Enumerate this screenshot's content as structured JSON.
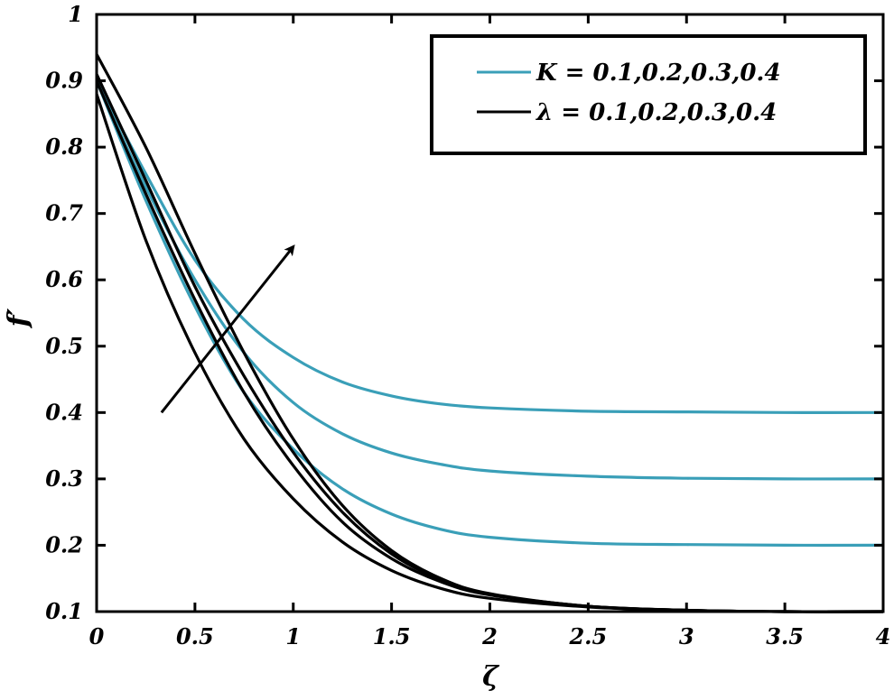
{
  "chart_data": {
    "type": "line",
    "xlabel": "ζ",
    "ylabel": "f′",
    "xlim": [
      0,
      4
    ],
    "ylim": [
      0.1,
      1
    ],
    "xticks": [
      "0",
      "0.5",
      "1",
      "1.5",
      "2",
      "2.5",
      "3",
      "3.5",
      "4"
    ],
    "yticks": [
      "0.1",
      "0.2",
      "0.3",
      "0.4",
      "0.5",
      "0.6",
      "0.7",
      "0.8",
      "0.9",
      "1"
    ],
    "grid": false,
    "legend_position": "top-right",
    "legend": [
      {
        "label": "K = 0.1,0.2,0.3,0.4",
        "color": "#3a9fb8"
      },
      {
        "label": "λ = 0.1,0.2,0.3,0.4",
        "color": "#000000"
      }
    ],
    "series": [
      {
        "group": "K = 0.1,0.2,0.3,0.4",
        "color": "#3a9fb8",
        "x": [
          0,
          0.25,
          0.5,
          0.75,
          1.0,
          1.25,
          1.5,
          1.75,
          2.0,
          2.5,
          3.0,
          3.5,
          4.0
        ],
        "y": [
          0.9,
          0.72,
          0.56,
          0.43,
          0.345,
          0.285,
          0.247,
          0.224,
          0.212,
          0.203,
          0.201,
          0.2,
          0.2
        ]
      },
      {
        "group": "K = 0.1,0.2,0.3,0.4",
        "color": "#3a9fb8",
        "x": [
          0,
          0.25,
          0.5,
          0.75,
          1.0,
          1.25,
          1.5,
          1.75,
          2.0,
          2.5,
          3.0,
          3.5,
          4.0
        ],
        "y": [
          0.9,
          0.74,
          0.6,
          0.49,
          0.415,
          0.368,
          0.339,
          0.322,
          0.312,
          0.304,
          0.301,
          0.3,
          0.3
        ]
      },
      {
        "group": "K = 0.1,0.2,0.3,0.4",
        "color": "#3a9fb8",
        "x": [
          0,
          0.25,
          0.5,
          0.75,
          1.0,
          1.25,
          1.5,
          1.75,
          2.0,
          2.5,
          3.0,
          3.5,
          4.0
        ],
        "y": [
          0.9,
          0.76,
          0.63,
          0.54,
          0.483,
          0.446,
          0.425,
          0.413,
          0.407,
          0.402,
          0.401,
          0.4,
          0.4
        ]
      },
      {
        "group": "λ = 0.1,0.2,0.3,0.4",
        "color": "#000000",
        "x": [
          0,
          0.25,
          0.5,
          0.75,
          1.0,
          1.25,
          1.5,
          1.75,
          2.0,
          2.5,
          3.0,
          3.5,
          4.0
        ],
        "y": [
          0.88,
          0.66,
          0.49,
          0.36,
          0.27,
          0.205,
          0.162,
          0.135,
          0.12,
          0.107,
          0.102,
          0.1,
          0.1
        ]
      },
      {
        "group": "λ = 0.1,0.2,0.3,0.4",
        "color": "#000000",
        "x": [
          0,
          0.25,
          0.5,
          0.75,
          1.0,
          1.25,
          1.5,
          1.75,
          2.0,
          2.5,
          3.0,
          3.5,
          4.0
        ],
        "y": [
          0.9,
          0.73,
          0.57,
          0.43,
          0.32,
          0.235,
          0.18,
          0.145,
          0.125,
          0.108,
          0.102,
          0.1,
          0.1
        ]
      },
      {
        "group": "λ = 0.1,0.2,0.3,0.4",
        "color": "#000000",
        "x": [
          0,
          0.25,
          0.5,
          0.75,
          1.0,
          1.25,
          1.5,
          1.75,
          2.0,
          2.5,
          3.0,
          3.5,
          4.0
        ],
        "y": [
          0.91,
          0.75,
          0.59,
          0.455,
          0.34,
          0.25,
          0.187,
          0.148,
          0.126,
          0.108,
          0.102,
          0.1,
          0.1
        ]
      },
      {
        "group": "λ = 0.1,0.2,0.3,0.4",
        "color": "#000000",
        "x": [
          0,
          0.25,
          0.5,
          0.75,
          1.0,
          1.25,
          1.5,
          1.75,
          2.0,
          2.5,
          3.0,
          3.5,
          4.0
        ],
        "y": [
          0.94,
          0.8,
          0.64,
          0.49,
          0.36,
          0.26,
          0.192,
          0.15,
          0.127,
          0.108,
          0.102,
          0.1,
          0.1
        ]
      }
    ],
    "annotations": [
      {
        "type": "arrow",
        "from": [
          0.33,
          0.4
        ],
        "to": [
          1.0,
          0.65
        ]
      }
    ]
  }
}
